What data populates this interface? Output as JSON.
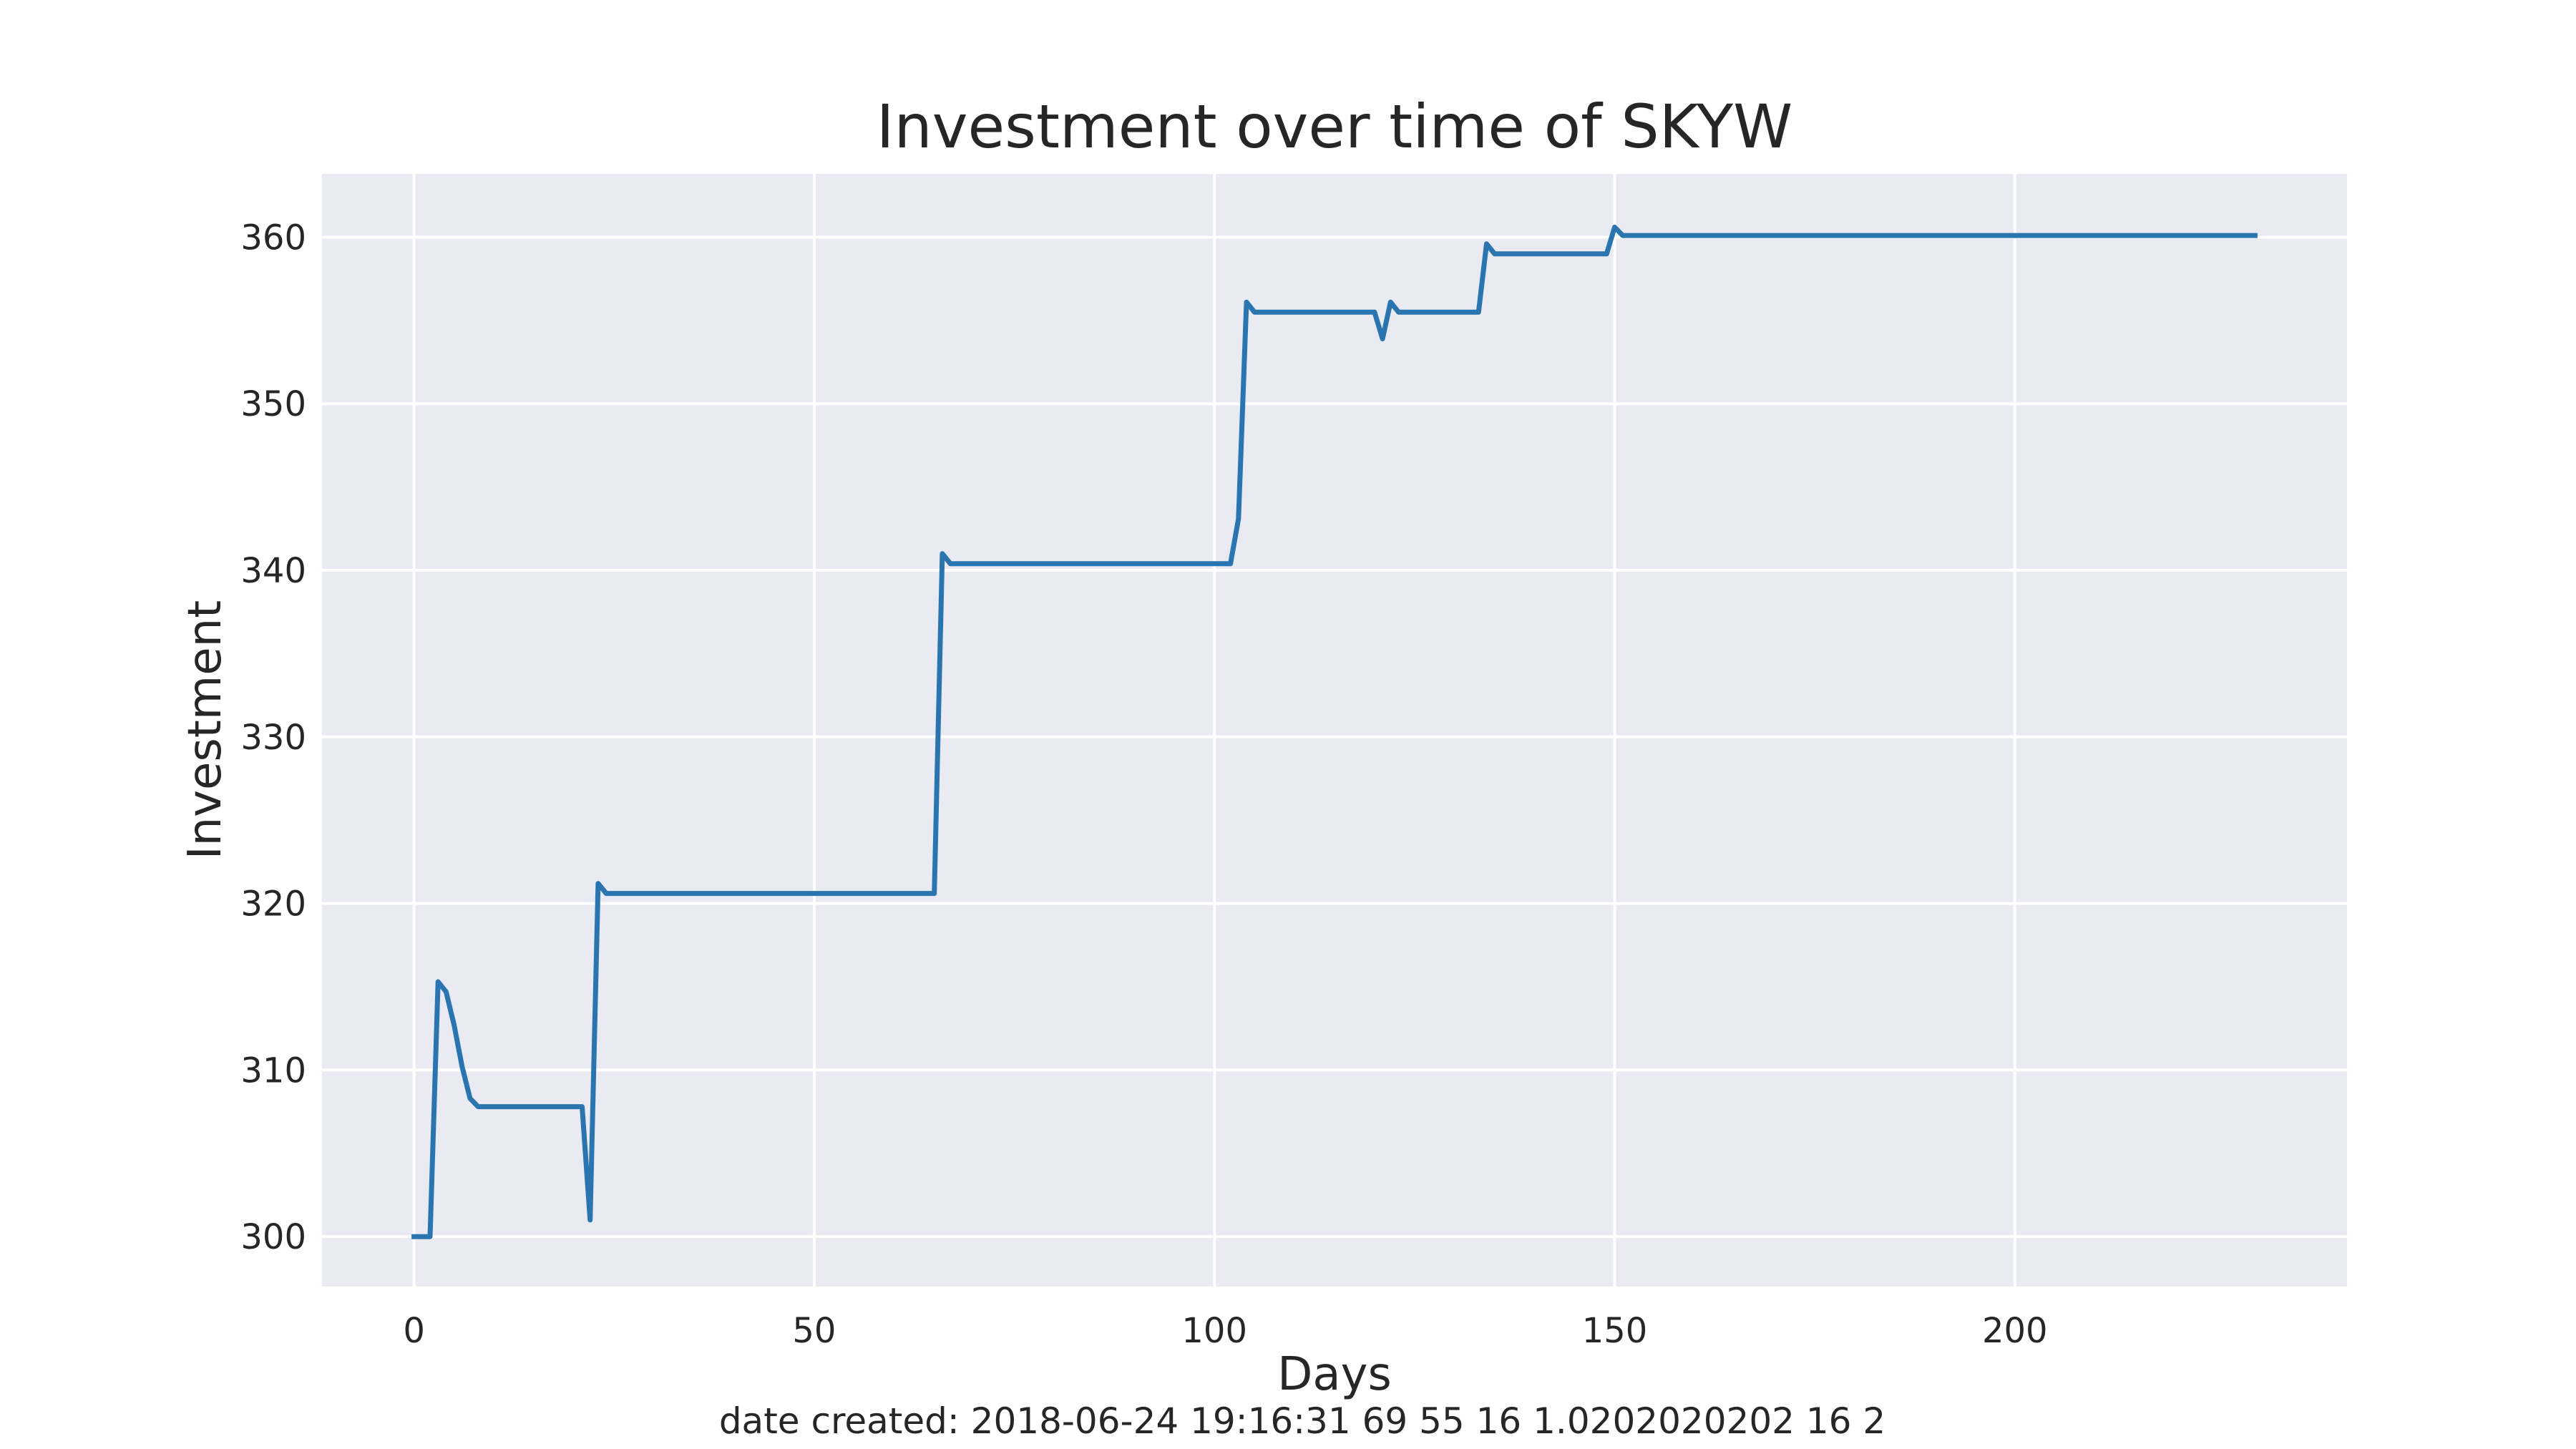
{
  "chart_data": {
    "type": "line",
    "title": "Investment over time of SKYW",
    "xlabel": "Days",
    "ylabel": "Investment",
    "footnote": "date created: 2018-06-24 19:16:31 69 55 16 1.0202020202 16 2",
    "xlim": [
      -11.5,
      241.5
    ],
    "ylim": [
      297,
      363.8
    ],
    "xticks": [
      0,
      50,
      100,
      150,
      200
    ],
    "xtick_labels": [
      "0",
      "50",
      "100",
      "150",
      "200"
    ],
    "yticks": [
      300,
      310,
      320,
      330,
      340,
      350,
      360
    ],
    "ytick_labels": [
      "300",
      "310",
      "320",
      "330",
      "340",
      "350",
      "360"
    ],
    "grid": true,
    "legend": "none",
    "colors": {
      "background": "#ffffff",
      "plot_background": "#eaeaf2",
      "grid": "#ffffff",
      "line": "#2a75b0",
      "text": "#262626"
    },
    "series": [
      {
        "color": "#2a75b0",
        "x": [
          0,
          1,
          2,
          3,
          4,
          5,
          6,
          7,
          8,
          10,
          15,
          20,
          21,
          22,
          23,
          24,
          25,
          30,
          40,
          50,
          60,
          65,
          66,
          67,
          70,
          80,
          90,
          100,
          102,
          103,
          104,
          105,
          110,
          115,
          120,
          121,
          122,
          123,
          125,
          130,
          133,
          134,
          135,
          140,
          145,
          149,
          150,
          151,
          160,
          180,
          200,
          220,
          230
        ],
        "y": [
          300,
          300,
          300,
          315.3,
          314.7,
          312.7,
          310.2,
          308.3,
          307.8,
          307.8,
          307.8,
          307.8,
          307.8,
          301,
          321.2,
          320.6,
          320.6,
          320.6,
          320.6,
          320.6,
          320.6,
          320.6,
          341,
          340.4,
          340.4,
          340.4,
          340.4,
          340.4,
          340.4,
          343.1,
          356.1,
          355.5,
          355.5,
          355.5,
          355.5,
          353.9,
          356.1,
          355.5,
          355.5,
          355.5,
          355.5,
          359.6,
          359,
          359,
          359,
          359,
          360.6,
          360.1,
          360.1,
          360.1,
          360.1,
          360.1,
          360.1
        ]
      }
    ]
  }
}
